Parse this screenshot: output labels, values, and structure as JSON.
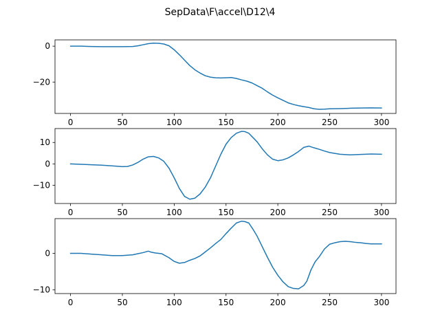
{
  "figure": {
    "title": "SepData\\F\\accel\\D12\\4"
  },
  "chart_data": [
    {
      "type": "line",
      "xlim": [
        -15,
        314
      ],
      "ylim": [
        -37.5,
        3.5
      ],
      "xticks": [
        0,
        50,
        100,
        150,
        200,
        250,
        300
      ],
      "yticks": [
        0,
        -20
      ],
      "ytick_labels": [
        "0",
        "−20"
      ],
      "color": "#1f77b4",
      "x": [
        0,
        10,
        20,
        30,
        40,
        50,
        60,
        65,
        70,
        75,
        80,
        85,
        90,
        95,
        100,
        105,
        110,
        115,
        120,
        125,
        130,
        135,
        140,
        145,
        150,
        155,
        160,
        165,
        170,
        175,
        180,
        185,
        190,
        195,
        200,
        205,
        210,
        215,
        220,
        225,
        230,
        235,
        240,
        245,
        250,
        260,
        270,
        280,
        290,
        300
      ],
      "y": [
        0,
        0,
        -0.2,
        -0.3,
        -0.3,
        -0.3,
        -0.2,
        0.2,
        0.8,
        1.4,
        1.7,
        1.6,
        1.2,
        0.2,
        -2,
        -4.8,
        -7.8,
        -10.8,
        -13.2,
        -15,
        -16.5,
        -17.3,
        -17.6,
        -17.7,
        -17.6,
        -17.5,
        -18,
        -18.8,
        -19.5,
        -20.5,
        -22,
        -23.5,
        -25.5,
        -27.3,
        -28.8,
        -30.2,
        -31.6,
        -32.5,
        -33.2,
        -33.7,
        -34.2,
        -34.9,
        -35.2,
        -35.1,
        -34.9,
        -34.8,
        -34.6,
        -34.5,
        -34.4,
        -34.5
      ]
    },
    {
      "type": "line",
      "xlim": [
        -15,
        314
      ],
      "ylim": [
        -18.5,
        16.5
      ],
      "xticks": [
        0,
        50,
        100,
        150,
        200,
        250,
        300
      ],
      "yticks": [
        10,
        0,
        -10
      ],
      "ytick_labels": [
        "10",
        "0",
        "−10"
      ],
      "color": "#1f77b4",
      "x": [
        0,
        10,
        20,
        30,
        40,
        50,
        55,
        60,
        65,
        70,
        75,
        80,
        85,
        90,
        95,
        100,
        105,
        110,
        115,
        120,
        125,
        130,
        135,
        140,
        145,
        150,
        155,
        160,
        165,
        168,
        172,
        176,
        180,
        185,
        190,
        195,
        200,
        205,
        210,
        215,
        220,
        225,
        230,
        235,
        240,
        245,
        250,
        260,
        270,
        280,
        290,
        300
      ],
      "y": [
        0,
        -0.2,
        -0.4,
        -0.6,
        -0.9,
        -1.3,
        -1.2,
        -0.5,
        0.7,
        2.2,
        3.3,
        3.5,
        2.8,
        1.2,
        -2,
        -6.5,
        -11.5,
        -15.2,
        -16.5,
        -16,
        -14,
        -10.8,
        -6.5,
        -1,
        4.5,
        9.2,
        12.3,
        14.3,
        15.2,
        15.1,
        14.3,
        12.3,
        10.3,
        7,
        4.2,
        2.2,
        1.5,
        1.9,
        2.8,
        4.2,
        5.8,
        7.7,
        8.3,
        7.5,
        6.8,
        6,
        5.3,
        4.5,
        4.2,
        4.4,
        4.6,
        4.5
      ]
    },
    {
      "type": "line",
      "xlim": [
        -15,
        314
      ],
      "ylim": [
        -11,
        9.5
      ],
      "xticks": [
        0,
        50,
        100,
        150,
        200,
        250,
        300
      ],
      "yticks": [
        0,
        -10
      ],
      "ytick_labels": [
        "0",
        "−10"
      ],
      "color": "#1f77b4",
      "x": [
        0,
        10,
        20,
        30,
        40,
        50,
        60,
        65,
        70,
        75,
        78,
        82,
        88,
        95,
        100,
        105,
        110,
        115,
        120,
        125,
        130,
        135,
        140,
        145,
        150,
        155,
        160,
        165,
        168,
        172,
        176,
        180,
        185,
        190,
        195,
        200,
        205,
        210,
        215,
        220,
        225,
        228,
        232,
        236,
        240,
        245,
        250,
        255,
        260,
        265,
        270,
        275,
        280,
        285,
        290,
        300
      ],
      "y": [
        0,
        0,
        -0.2,
        -0.4,
        -0.6,
        -0.6,
        -0.4,
        -0.1,
        0.2,
        0.6,
        0.3,
        0.1,
        -0.1,
        -1.2,
        -2.2,
        -2.7,
        -2.5,
        -1.9,
        -1.4,
        -0.7,
        0.4,
        1.5,
        2.7,
        3.8,
        5.4,
        6.9,
        8.3,
        8.8,
        8.7,
        8.3,
        6.6,
        4.7,
        1.8,
        -1.1,
        -3.8,
        -6,
        -7.8,
        -9.1,
        -9.6,
        -9.7,
        -8.8,
        -7.6,
        -4.5,
        -2.3,
        -0.9,
        1.2,
        2.5,
        2.9,
        3.2,
        3.3,
        3.2,
        3,
        2.9,
        2.7,
        2.6,
        2.6
      ]
    }
  ]
}
